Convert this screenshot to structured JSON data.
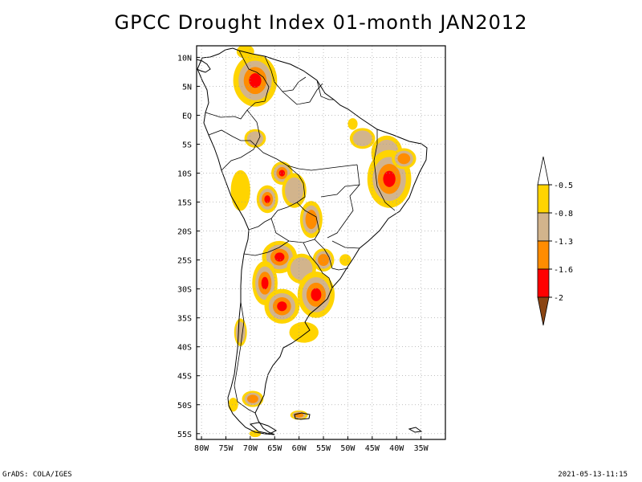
{
  "title": "GPCC Drought Index 01-month JAN2012",
  "map": {
    "lon_range": [
      -81,
      -30
    ],
    "lat_range": [
      -56,
      12
    ],
    "lon_ticks": [
      {
        "value": -80,
        "label": "80W"
      },
      {
        "value": -75,
        "label": "75W"
      },
      {
        "value": -70,
        "label": "70W"
      },
      {
        "value": -65,
        "label": "65W"
      },
      {
        "value": -60,
        "label": "60W"
      },
      {
        "value": -55,
        "label": "55W"
      },
      {
        "value": -50,
        "label": "50W"
      },
      {
        "value": -45,
        "label": "45W"
      },
      {
        "value": -40,
        "label": "40W"
      },
      {
        "value": -35,
        "label": "35W"
      }
    ],
    "lat_ticks": [
      {
        "value": 10,
        "label": "10N"
      },
      {
        "value": 5,
        "label": "5N"
      },
      {
        "value": 0,
        "label": "EQ"
      },
      {
        "value": -5,
        "label": "5S"
      },
      {
        "value": -10,
        "label": "10S"
      },
      {
        "value": -15,
        "label": "15S"
      },
      {
        "value": -20,
        "label": "20S"
      },
      {
        "value": -25,
        "label": "25S"
      },
      {
        "value": -30,
        "label": "30S"
      },
      {
        "value": -35,
        "label": "35S"
      },
      {
        "value": -40,
        "label": "40S"
      },
      {
        "value": -45,
        "label": "45S"
      },
      {
        "value": -50,
        "label": "50S"
      },
      {
        "value": -55,
        "label": "55S"
      }
    ]
  },
  "colors": {
    "level_05": "#ffd400",
    "level_08": "#d2b48c",
    "level_13": "#ff8c00",
    "level_16": "#ff0000",
    "level_20": "#8b4513",
    "border": "#000000",
    "grid": "#999999"
  },
  "drought_areas": [
    {
      "lon": -69,
      "lat": 6,
      "rx": 4.5,
      "ry": 4.5,
      "peak": 4
    },
    {
      "lon": -71,
      "lat": 11,
      "rx": 1.8,
      "ry": 1.2,
      "peak": 1
    },
    {
      "lon": -69,
      "lat": -4,
      "rx": 2.2,
      "ry": 1.6,
      "peak": 2
    },
    {
      "lon": -72,
      "lat": -13,
      "rx": 2.0,
      "ry": 3.5,
      "peak": 1
    },
    {
      "lon": -63.5,
      "lat": -10,
      "rx": 2.2,
      "ry": 2.0,
      "peak": 4
    },
    {
      "lon": -61,
      "lat": -13,
      "rx": 2.5,
      "ry": 3.0,
      "peak": 2
    },
    {
      "lon": -66.5,
      "lat": -14.5,
      "rx": 2.2,
      "ry": 2.4,
      "peak": 4
    },
    {
      "lon": -57.5,
      "lat": -18,
      "rx": 2.3,
      "ry": 3.2,
      "peak": 3
    },
    {
      "lon": -47,
      "lat": -4,
      "rx": 2.6,
      "ry": 1.8,
      "peak": 2
    },
    {
      "lon": -42,
      "lat": -6.5,
      "rx": 3.2,
      "ry": 3.0,
      "peak": 2
    },
    {
      "lon": -41.5,
      "lat": -11,
      "rx": 4.5,
      "ry": 5.0,
      "peak": 4
    },
    {
      "lon": -38.5,
      "lat": -7.5,
      "rx": 2.5,
      "ry": 1.8,
      "peak": 3
    },
    {
      "lon": -49,
      "lat": -1.5,
      "rx": 1.0,
      "ry": 1.0,
      "peak": 1
    },
    {
      "lon": -64,
      "lat": -24.5,
      "rx": 3.6,
      "ry": 2.8,
      "peak": 4
    },
    {
      "lon": -67,
      "lat": -29,
      "rx": 2.6,
      "ry": 3.8,
      "peak": 4
    },
    {
      "lon": -63.5,
      "lat": -33,
      "rx": 3.6,
      "ry": 3.0,
      "peak": 4
    },
    {
      "lon": -59.5,
      "lat": -26.5,
      "rx": 3.0,
      "ry": 2.6,
      "peak": 2
    },
    {
      "lon": -56.5,
      "lat": -31,
      "rx": 3.8,
      "ry": 4.0,
      "peak": 4
    },
    {
      "lon": -55,
      "lat": -25,
      "rx": 2.2,
      "ry": 2.0,
      "peak": 3
    },
    {
      "lon": -59,
      "lat": -37.5,
      "rx": 3.0,
      "ry": 1.8,
      "peak": 1
    },
    {
      "lon": -72,
      "lat": -37.5,
      "rx": 1.3,
      "ry": 2.4,
      "peak": 2
    },
    {
      "lon": -69.5,
      "lat": -49,
      "rx": 2.2,
      "ry": 1.4,
      "peak": 3
    },
    {
      "lon": -73.5,
      "lat": -50,
      "rx": 1.0,
      "ry": 1.2,
      "peak": 1
    },
    {
      "lon": -60,
      "lat": -51.8,
      "rx": 1.8,
      "ry": 0.8,
      "peak": 3
    },
    {
      "lon": -69,
      "lat": -55,
      "rx": 1.2,
      "ry": 0.6,
      "peak": 1
    },
    {
      "lon": -50.5,
      "lat": -25,
      "rx": 1.2,
      "ry": 1.0,
      "peak": 1
    }
  ],
  "legend": {
    "labels": [
      "-0.5",
      "-0.8",
      "-1.3",
      "-1.6",
      "-2"
    ]
  },
  "footer": {
    "left": "GrADS: COLA/IGES",
    "right": "2021-05-13-11:15"
  }
}
